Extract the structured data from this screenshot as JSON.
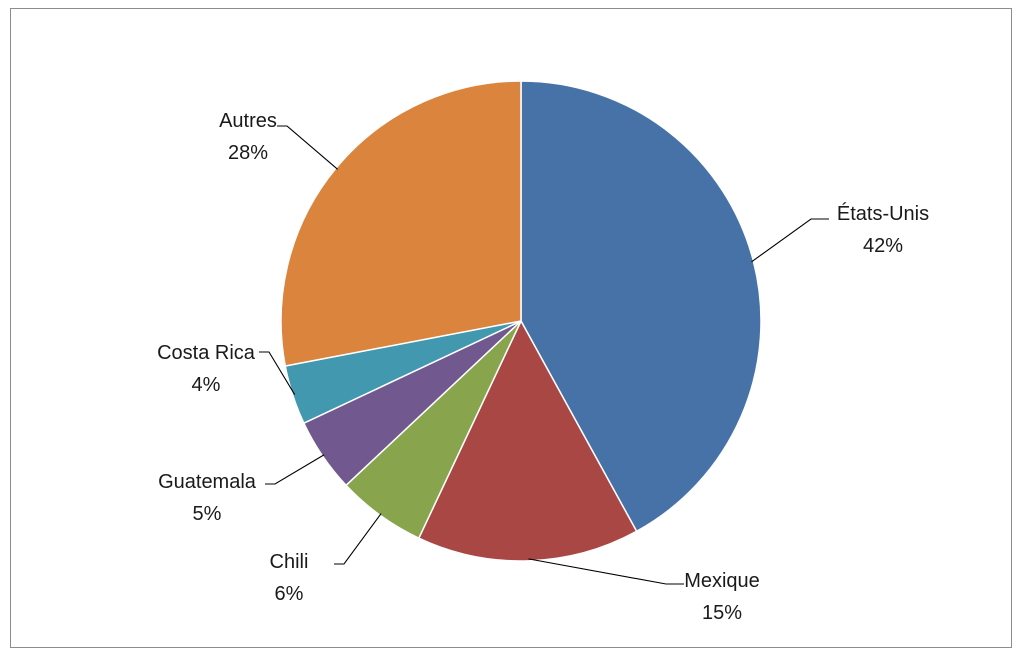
{
  "chart_data": {
    "type": "pie",
    "title": "",
    "start_angle_deg": 0,
    "direction": "clockwise",
    "legend": "none",
    "slices": [
      {
        "label": "États-Unis",
        "value": 42,
        "value_label": "42%",
        "color": "#4672A8"
      },
      {
        "label": "Mexique",
        "value": 15,
        "value_label": "15%",
        "color": "#A94744"
      },
      {
        "label": "Chili",
        "value": 6,
        "value_label": "6%",
        "color": "#88A54E"
      },
      {
        "label": "Guatemala",
        "value": 5,
        "value_label": "5%",
        "color": "#71588F"
      },
      {
        "label": "Costa Rica",
        "value": 4,
        "value_label": "4%",
        "color": "#4198AF"
      },
      {
        "label": "Autres",
        "value": 28,
        "value_label": "28%",
        "color": "#DB843D"
      }
    ]
  }
}
